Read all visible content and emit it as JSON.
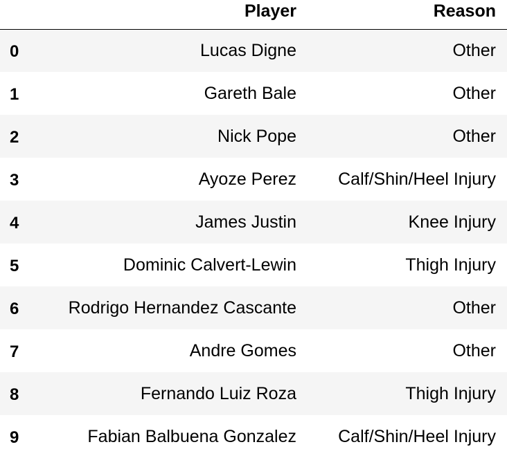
{
  "table": {
    "columns": {
      "index": "",
      "player": "Player",
      "reason": "Reason"
    },
    "rows": [
      {
        "index": "0",
        "player": "Lucas Digne",
        "reason": "Other"
      },
      {
        "index": "1",
        "player": "Gareth Bale",
        "reason": "Other"
      },
      {
        "index": "2",
        "player": "Nick Pope",
        "reason": "Other"
      },
      {
        "index": "3",
        "player": "Ayoze Perez",
        "reason": "Calf/Shin/Heel Injury"
      },
      {
        "index": "4",
        "player": "James Justin",
        "reason": "Knee Injury"
      },
      {
        "index": "5",
        "player": "Dominic Calvert-Lewin",
        "reason": "Thigh Injury"
      },
      {
        "index": "6",
        "player": "Rodrigo Hernandez Cascante",
        "reason": "Other"
      },
      {
        "index": "7",
        "player": "Andre Gomes",
        "reason": "Other"
      },
      {
        "index": "8",
        "player": "Fernando Luiz Roza",
        "reason": "Thigh Injury"
      },
      {
        "index": "9",
        "player": "Fabian Balbuena Gonzalez",
        "reason": "Calf/Shin/Heel Injury"
      }
    ]
  },
  "colors": {
    "striped_row": "#f5f5f5",
    "plain_row": "#ffffff",
    "header_rule": "#000000"
  }
}
